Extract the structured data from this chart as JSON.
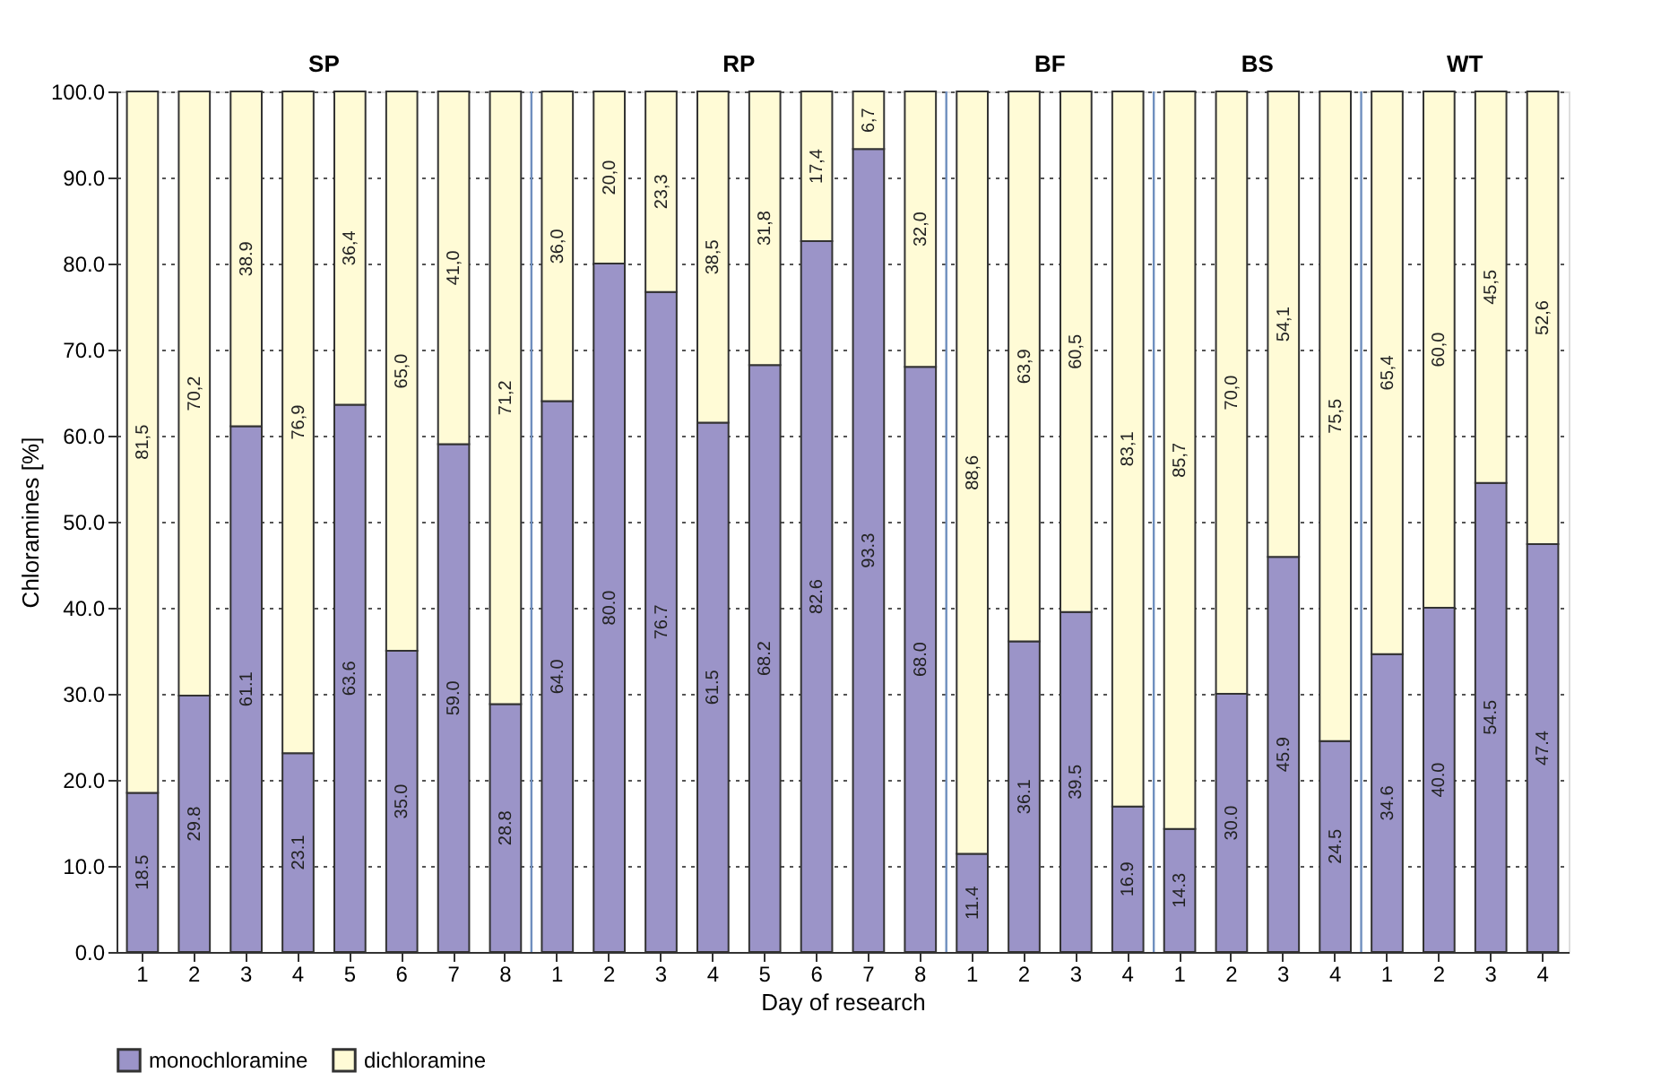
{
  "chart_data": {
    "type": "bar",
    "stacked": true,
    "xlabel": "Day of research",
    "ylabel": "Chloramines [%]",
    "categories": [
      "1",
      "2",
      "3",
      "4",
      "5",
      "6",
      "7",
      "8",
      "1",
      "2",
      "3",
      "4",
      "5",
      "6",
      "7",
      "8",
      "1",
      "2",
      "3",
      "4",
      "1",
      "2",
      "3",
      "4",
      "1",
      "2",
      "3",
      "4"
    ],
    "series": [
      {
        "name": "monochloramine",
        "color": "#9b94c8",
        "values": [
          18.5,
          29.8,
          61.1,
          23.1,
          63.6,
          35.0,
          59.0,
          28.8,
          64.0,
          80.0,
          76.7,
          61.5,
          68.2,
          82.6,
          93.3,
          68.0,
          11.4,
          36.1,
          39.5,
          16.9,
          14.3,
          30.0,
          45.9,
          24.5,
          34.6,
          40.0,
          54.5,
          47.4
        ],
        "value_labels": [
          "18.5",
          "29.8",
          "61.1",
          "23.1",
          "63.6",
          "35.0",
          "59.0",
          "28.8",
          "64.0",
          "80.0",
          "76.7",
          "61.5",
          "68.2",
          "82.6",
          "93.3",
          "68.0",
          "11.4",
          "36.1",
          "39.5",
          "16.9",
          "14.3",
          "30.0",
          "45.9",
          "24.5",
          "34.6",
          "40.0",
          "54.5",
          "47.4"
        ]
      },
      {
        "name": "dichloramine",
        "color": "#fffbd6",
        "values": [
          81.5,
          70.2,
          38.9,
          76.9,
          36.4,
          65.0,
          41.0,
          71.2,
          36.0,
          20.0,
          23.3,
          38.5,
          31.8,
          17.4,
          6.7,
          32.0,
          88.6,
          63.9,
          60.5,
          83.1,
          85.7,
          70.0,
          54.1,
          75.5,
          65.4,
          60.0,
          45.5,
          52.6
        ],
        "value_labels": [
          "81,5",
          "70,2",
          "38.9",
          "76,9",
          "36,4",
          "65,0",
          "41,0",
          "71,2",
          "36,0",
          "20,0",
          "23,3",
          "38,5",
          "31,8",
          "17,4",
          "6,7",
          "32,0",
          "88,6",
          "63,9",
          "60,5",
          "83,1",
          "85,7",
          "70,0",
          "54,1",
          "75,5",
          "65,4",
          "60,0",
          "45,5",
          "52,6"
        ]
      }
    ],
    "ylim": [
      0,
      100
    ],
    "yticks": [
      {
        "value": 0,
        "label": "0.0"
      },
      {
        "value": 10,
        "label": "10.0"
      },
      {
        "value": 20,
        "label": "20.0"
      },
      {
        "value": 30,
        "label": "30.0"
      },
      {
        "value": 40,
        "label": "40.0"
      },
      {
        "value": 50,
        "label": "50.0"
      },
      {
        "value": 60,
        "label": "60.0"
      },
      {
        "value": 70,
        "label": "70.0"
      },
      {
        "value": 80,
        "label": "80.0"
      },
      {
        "value": 90,
        "label": "90.0"
      },
      {
        "value": 100,
        "label": "100.0"
      }
    ],
    "grid": "y",
    "legend": "bottom",
    "annotations": [
      "SP",
      "RP",
      "BF",
      "BS",
      "WT"
    ]
  }
}
